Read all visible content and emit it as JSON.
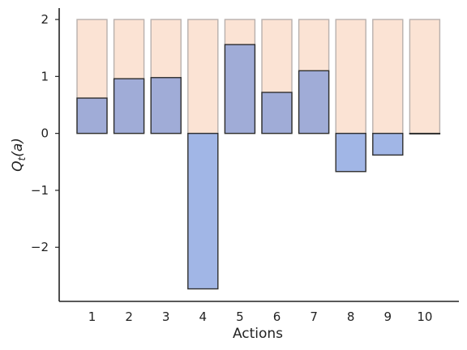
{
  "chart_data": {
    "type": "bar",
    "title": "",
    "xlabel": "Actions",
    "ylabel_main": "Q",
    "ylabel_sub": "t",
    "ylabel_arg": "(a)",
    "categories": [
      "1",
      "2",
      "3",
      "4",
      "5",
      "6",
      "7",
      "8",
      "9",
      "10"
    ],
    "series": [
      {
        "values": [
          2,
          2,
          2,
          2,
          2,
          2,
          2,
          2,
          2,
          2
        ],
        "fill": "#fbe3d4",
        "stroke": "#b8b0ad"
      },
      {
        "values": [
          0.62,
          0.96,
          0.98,
          -2.73,
          1.56,
          0.72,
          1.1,
          -0.67,
          -0.38,
          0.0
        ],
        "fill": "#6f8fd8",
        "stroke": "#2f2f2f"
      }
    ],
    "ylim": [
      -2.95,
      2.2
    ],
    "yticks": [
      2,
      1,
      0,
      -1,
      -2
    ],
    "ytick_labels": [
      "2",
      "1",
      "0",
      "−1",
      "−2"
    ],
    "grid": false,
    "legend": "none"
  }
}
